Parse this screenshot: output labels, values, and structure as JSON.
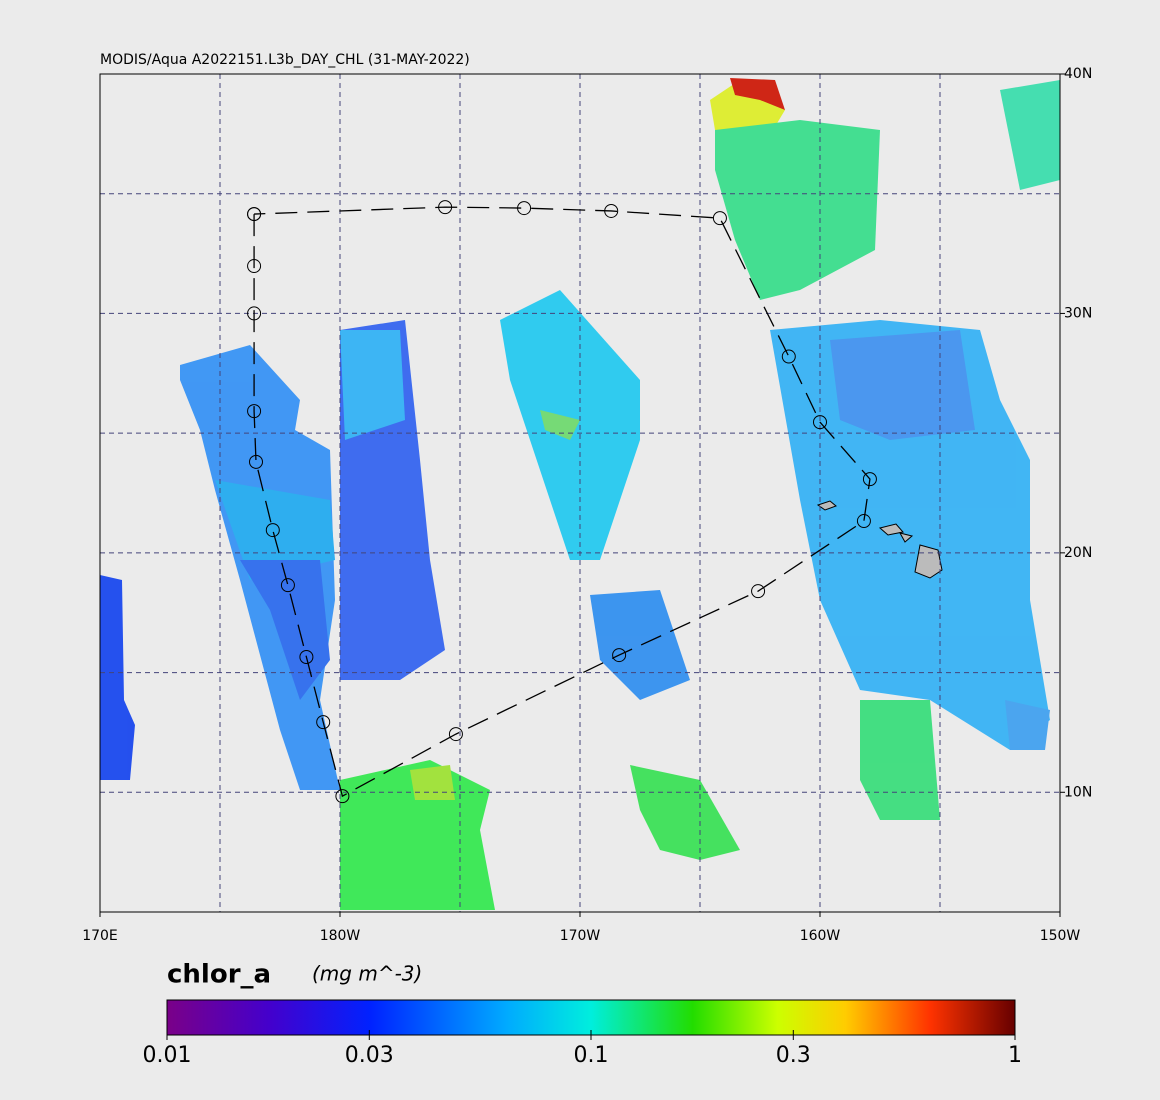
{
  "title": "MODIS/Aqua A2022151.L3b_DAY_CHL (31-MAY-2022)",
  "map": {
    "lonlim": [
      170,
      210
    ],
    "latlim": [
      5,
      40
    ],
    "lon_ticks": [
      {
        "value": 170,
        "label": "170E"
      },
      {
        "value": 180,
        "label": "180W"
      },
      {
        "value": 190,
        "label": "170W"
      },
      {
        "value": 200,
        "label": "160W"
      },
      {
        "value": 210,
        "label": "150W"
      }
    ],
    "lat_ticks": [
      {
        "value": 40,
        "label": "40N"
      },
      {
        "value": 30,
        "label": "30N"
      },
      {
        "value": 20,
        "label": "20N"
      },
      {
        "value": 10,
        "label": "10N"
      }
    ],
    "grid_lons": [
      175,
      180,
      185,
      190,
      195,
      200,
      205
    ],
    "grid_lats": [
      10,
      15,
      20,
      25,
      30,
      35
    ],
    "track": {
      "lon": [
        176.42,
        176.42,
        176.42,
        176.42,
        176.5,
        177.2,
        177.83,
        178.6,
        179.3,
        180.1,
        184.83,
        191.63,
        197.42,
        201.83,
        202.08,
        200.0,
        198.7,
        195.83,
        191.3,
        187.67,
        184.38,
        176.42
      ],
      "lat": [
        34.15,
        31.98,
        30.0,
        25.92,
        23.8,
        20.95,
        18.65,
        15.65,
        12.93,
        9.84,
        12.43,
        15.73,
        18.4,
        21.33,
        23.08,
        25.46,
        28.2,
        33.98,
        34.28,
        34.4,
        34.44,
        34.15
      ]
    }
  },
  "colorbar": {
    "label": "chlor_a",
    "units": "(mg m^-3)",
    "scale": "log",
    "lim": [
      0.01,
      1
    ],
    "ticks": [
      0.01,
      0.03,
      0.1,
      0.3,
      1
    ]
  }
}
